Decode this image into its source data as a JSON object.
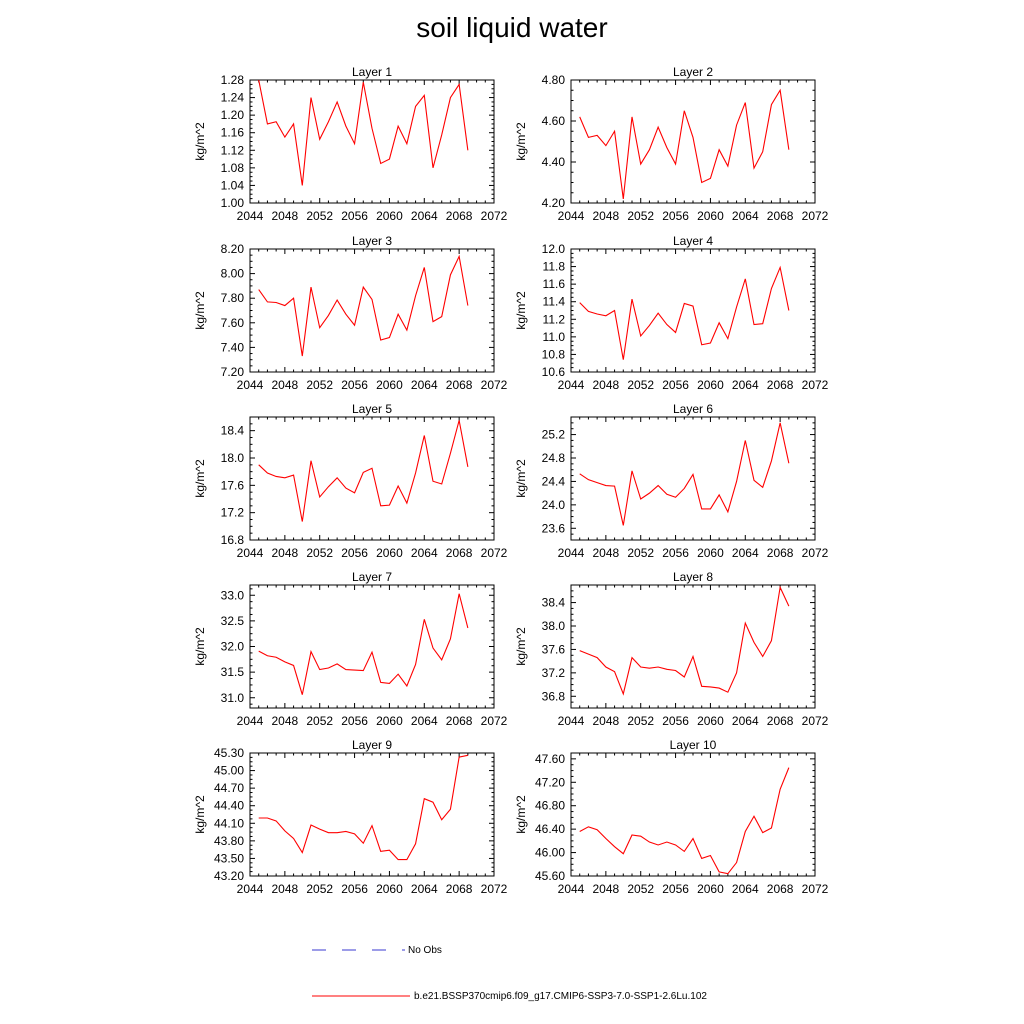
{
  "figure_title": "soil liquid water",
  "legend": {
    "obs_label": "No Obs",
    "obs_color": "#3a3ad0",
    "model_label": "b.e21.BSSP370cmip6.f09_g17.CMIP6-SSP3-7.0-SSP1-2.6Lu.102",
    "model_color": "#ff0000"
  },
  "chart_data": [
    {
      "type": "line",
      "title": "Layer 1",
      "ylabel": "kg/m^2",
      "xlim": [
        2044,
        2072
      ],
      "xticks": [
        2044,
        2048,
        2052,
        2056,
        2060,
        2064,
        2068,
        2072
      ],
      "ylim": [
        1.0,
        1.28
      ],
      "yticks": [
        1.0,
        1.04,
        1.08,
        1.12,
        1.16,
        1.2,
        1.24,
        1.28
      ],
      "ytick_labels": [
        "1.00",
        "1.04",
        "1.08",
        "1.12",
        "1.16",
        "1.20",
        "1.24",
        "1.28"
      ],
      "x": [
        2045,
        2046,
        2047,
        2048,
        2049,
        2050,
        2051,
        2052,
        2053,
        2054,
        2055,
        2056,
        2057,
        2058,
        2059,
        2060,
        2061,
        2062,
        2063,
        2064,
        2065,
        2066,
        2067,
        2068,
        2069
      ],
      "series": [
        {
          "name": "b.e21.BSSP370cmip6.f09_g17.CMIP6-SSP3-7.0-SSP1-2.6Lu.102",
          "values": [
            1.28,
            1.18,
            1.185,
            1.15,
            1.18,
            1.04,
            1.24,
            1.145,
            1.185,
            1.23,
            1.175,
            1.135,
            1.275,
            1.17,
            1.09,
            1.1,
            1.175,
            1.135,
            1.22,
            1.245,
            1.08,
            1.155,
            1.24,
            1.27,
            1.12
          ]
        }
      ]
    },
    {
      "type": "line",
      "title": "Layer 2",
      "ylabel": "kg/m^2",
      "xlim": [
        2044,
        2072
      ],
      "xticks": [
        2044,
        2048,
        2052,
        2056,
        2060,
        2064,
        2068,
        2072
      ],
      "ylim": [
        4.2,
        4.8
      ],
      "yticks": [
        4.2,
        4.4,
        4.6,
        4.8
      ],
      "ytick_labels": [
        "4.20",
        "4.40",
        "4.60",
        "4.80"
      ],
      "x": [
        2045,
        2046,
        2047,
        2048,
        2049,
        2050,
        2051,
        2052,
        2053,
        2054,
        2055,
        2056,
        2057,
        2058,
        2059,
        2060,
        2061,
        2062,
        2063,
        2064,
        2065,
        2066,
        2067,
        2068,
        2069
      ],
      "series": [
        {
          "name": "b.e21.BSSP370cmip6.f09_g17.CMIP6-SSP3-7.0-SSP1-2.6Lu.102",
          "values": [
            4.62,
            4.52,
            4.53,
            4.48,
            4.55,
            4.22,
            4.62,
            4.39,
            4.46,
            4.57,
            4.47,
            4.39,
            4.65,
            4.52,
            4.3,
            4.32,
            4.46,
            4.38,
            4.58,
            4.69,
            4.37,
            4.45,
            4.68,
            4.75,
            4.46
          ]
        }
      ]
    },
    {
      "type": "line",
      "title": "Layer 3",
      "ylabel": "kg/m^2",
      "xlim": [
        2044,
        2072
      ],
      "xticks": [
        2044,
        2048,
        2052,
        2056,
        2060,
        2064,
        2068,
        2072
      ],
      "ylim": [
        7.2,
        8.2
      ],
      "yticks": [
        7.2,
        7.4,
        7.6,
        7.8,
        8.0,
        8.2
      ],
      "ytick_labels": [
        "7.20",
        "7.40",
        "7.60",
        "7.80",
        "8.00",
        "8.20"
      ],
      "x": [
        2045,
        2046,
        2047,
        2048,
        2049,
        2050,
        2051,
        2052,
        2053,
        2054,
        2055,
        2056,
        2057,
        2058,
        2059,
        2060,
        2061,
        2062,
        2063,
        2064,
        2065,
        2066,
        2067,
        2068,
        2069
      ],
      "series": [
        {
          "name": "b.e21.BSSP370cmip6.f09_g17.CMIP6-SSP3-7.0-SSP1-2.6Lu.102",
          "values": [
            7.87,
            7.77,
            7.765,
            7.74,
            7.8,
            7.33,
            7.89,
            7.56,
            7.66,
            7.785,
            7.67,
            7.58,
            7.89,
            7.79,
            7.46,
            7.48,
            7.67,
            7.54,
            7.82,
            8.05,
            7.61,
            7.65,
            7.99,
            8.14,
            7.74
          ]
        }
      ]
    },
    {
      "type": "line",
      "title": "Layer 4",
      "ylabel": "kg/m^2",
      "xlim": [
        2044,
        2072
      ],
      "xticks": [
        2044,
        2048,
        2052,
        2056,
        2060,
        2064,
        2068,
        2072
      ],
      "ylim": [
        10.6,
        12.0
      ],
      "yticks": [
        10.6,
        10.8,
        11.0,
        11.2,
        11.4,
        11.6,
        11.8,
        12.0
      ],
      "ytick_labels": [
        "10.6",
        "10.8",
        "11.0",
        "11.2",
        "11.4",
        "11.6",
        "11.8",
        "12.0"
      ],
      "x": [
        2045,
        2046,
        2047,
        2048,
        2049,
        2050,
        2051,
        2052,
        2053,
        2054,
        2055,
        2056,
        2057,
        2058,
        2059,
        2060,
        2061,
        2062,
        2063,
        2064,
        2065,
        2066,
        2067,
        2068,
        2069
      ],
      "series": [
        {
          "name": "b.e21.BSSP370cmip6.f09_g17.CMIP6-SSP3-7.0-SSP1-2.6Lu.102",
          "values": [
            11.39,
            11.29,
            11.26,
            11.24,
            11.3,
            10.74,
            11.43,
            11.01,
            11.13,
            11.27,
            11.14,
            11.05,
            11.38,
            11.35,
            10.91,
            10.93,
            11.16,
            10.98,
            11.34,
            11.66,
            11.14,
            11.15,
            11.55,
            11.79,
            11.3
          ]
        }
      ]
    },
    {
      "type": "line",
      "title": "Layer 5",
      "ylabel": "kg/m^2",
      "xlim": [
        2044,
        2072
      ],
      "xticks": [
        2044,
        2048,
        2052,
        2056,
        2060,
        2064,
        2068,
        2072
      ],
      "ylim": [
        16.8,
        18.6
      ],
      "yticks": [
        16.8,
        17.2,
        17.6,
        18.0,
        18.4
      ],
      "ytick_labels": [
        "16.8",
        "17.2",
        "17.6",
        "18.0",
        "18.4"
      ],
      "x": [
        2045,
        2046,
        2047,
        2048,
        2049,
        2050,
        2051,
        2052,
        2053,
        2054,
        2055,
        2056,
        2057,
        2058,
        2059,
        2060,
        2061,
        2062,
        2063,
        2064,
        2065,
        2066,
        2067,
        2068,
        2069
      ],
      "series": [
        {
          "name": "b.e21.BSSP370cmip6.f09_g17.CMIP6-SSP3-7.0-SSP1-2.6Lu.102",
          "values": [
            17.9,
            17.78,
            17.73,
            17.71,
            17.75,
            17.07,
            17.96,
            17.43,
            17.58,
            17.71,
            17.56,
            17.49,
            17.79,
            17.85,
            17.3,
            17.31,
            17.59,
            17.34,
            17.78,
            18.33,
            17.66,
            17.62,
            18.07,
            18.55,
            17.87
          ]
        }
      ]
    },
    {
      "type": "line",
      "title": "Layer 6",
      "ylabel": "kg/m^2",
      "xlim": [
        2044,
        2072
      ],
      "xticks": [
        2044,
        2048,
        2052,
        2056,
        2060,
        2064,
        2068,
        2072
      ],
      "ylim": [
        23.4,
        25.5
      ],
      "yticks": [
        23.6,
        24.0,
        24.4,
        24.8,
        25.2
      ],
      "ytick_labels": [
        "23.6",
        "24.0",
        "24.4",
        "24.8",
        "25.2"
      ],
      "x": [
        2045,
        2046,
        2047,
        2048,
        2049,
        2050,
        2051,
        2052,
        2053,
        2054,
        2055,
        2056,
        2057,
        2058,
        2059,
        2060,
        2061,
        2062,
        2063,
        2064,
        2065,
        2066,
        2067,
        2068,
        2069
      ],
      "series": [
        {
          "name": "b.e21.BSSP370cmip6.f09_g17.CMIP6-SSP3-7.0-SSP1-2.6Lu.102",
          "values": [
            24.53,
            24.43,
            24.38,
            24.33,
            24.32,
            23.65,
            24.58,
            24.1,
            24.2,
            24.33,
            24.18,
            24.13,
            24.28,
            24.52,
            23.93,
            23.93,
            24.17,
            23.88,
            24.4,
            25.1,
            24.42,
            24.3,
            24.75,
            25.4,
            24.71
          ]
        }
      ]
    },
    {
      "type": "line",
      "title": "Layer 7",
      "ylabel": "kg/m^2",
      "xlim": [
        2044,
        2072
      ],
      "xticks": [
        2044,
        2048,
        2052,
        2056,
        2060,
        2064,
        2068,
        2072
      ],
      "ylim": [
        30.8,
        33.2
      ],
      "yticks": [
        31.0,
        31.5,
        32.0,
        32.5,
        33.0
      ],
      "ytick_labels": [
        "31.0",
        "31.5",
        "32.0",
        "32.5",
        "33.0"
      ],
      "x": [
        2045,
        2046,
        2047,
        2048,
        2049,
        2050,
        2051,
        2052,
        2053,
        2054,
        2055,
        2056,
        2057,
        2058,
        2059,
        2060,
        2061,
        2062,
        2063,
        2064,
        2065,
        2066,
        2067,
        2068,
        2069
      ],
      "series": [
        {
          "name": "b.e21.BSSP370cmip6.f09_g17.CMIP6-SSP3-7.0-SSP1-2.6Lu.102",
          "values": [
            31.91,
            31.82,
            31.79,
            31.7,
            31.63,
            31.06,
            31.9,
            31.55,
            31.58,
            31.66,
            31.55,
            31.54,
            31.53,
            31.89,
            31.3,
            31.28,
            31.46,
            31.23,
            31.65,
            32.53,
            31.97,
            31.74,
            32.15,
            33.03,
            32.36
          ]
        }
      ]
    },
    {
      "type": "line",
      "title": "Layer 8",
      "ylabel": "kg/m^2",
      "xlim": [
        2044,
        2072
      ],
      "xticks": [
        2044,
        2048,
        2052,
        2056,
        2060,
        2064,
        2068,
        2072
      ],
      "ylim": [
        36.6,
        38.7
      ],
      "yticks": [
        36.8,
        37.2,
        37.6,
        38.0,
        38.4
      ],
      "ytick_labels": [
        "36.8",
        "37.2",
        "37.6",
        "38.0",
        "38.4"
      ],
      "x": [
        2045,
        2046,
        2047,
        2048,
        2049,
        2050,
        2051,
        2052,
        2053,
        2054,
        2055,
        2056,
        2057,
        2058,
        2059,
        2060,
        2061,
        2062,
        2063,
        2064,
        2065,
        2066,
        2067,
        2068,
        2069
      ],
      "series": [
        {
          "name": "b.e21.BSSP370cmip6.f09_g17.CMIP6-SSP3-7.0-SSP1-2.6Lu.102",
          "values": [
            37.58,
            37.52,
            37.46,
            37.3,
            37.22,
            36.84,
            37.46,
            37.3,
            37.28,
            37.3,
            37.26,
            37.24,
            37.13,
            37.48,
            36.97,
            36.96,
            36.94,
            36.87,
            37.2,
            38.05,
            37.72,
            37.48,
            37.75,
            38.66,
            38.34
          ]
        }
      ]
    },
    {
      "type": "line",
      "title": "Layer 9",
      "ylabel": "kg/m^2",
      "xlim": [
        2044,
        2072
      ],
      "xticks": [
        2044,
        2048,
        2052,
        2056,
        2060,
        2064,
        2068,
        2072
      ],
      "ylim": [
        43.2,
        45.3
      ],
      "yticks": [
        43.2,
        43.5,
        43.8,
        44.1,
        44.4,
        44.7,
        45.0,
        45.3
      ],
      "ytick_labels": [
        "43.20",
        "43.50",
        "43.80",
        "44.10",
        "44.40",
        "44.70",
        "45.00",
        "45.30"
      ],
      "x": [
        2045,
        2046,
        2047,
        2048,
        2049,
        2050,
        2051,
        2052,
        2053,
        2054,
        2055,
        2056,
        2057,
        2058,
        2059,
        2060,
        2061,
        2062,
        2063,
        2064,
        2065,
        2066,
        2067,
        2068,
        2069
      ],
      "series": [
        {
          "name": "b.e21.BSSP370cmip6.f09_g17.CMIP6-SSP3-7.0-SSP1-2.6Lu.102",
          "values": [
            44.19,
            44.19,
            44.14,
            43.97,
            43.84,
            43.6,
            44.07,
            44.0,
            43.94,
            43.94,
            43.96,
            43.92,
            43.76,
            44.06,
            43.62,
            43.64,
            43.48,
            43.48,
            43.75,
            44.52,
            44.46,
            44.16,
            44.34,
            45.23,
            45.26
          ]
        }
      ]
    },
    {
      "type": "line",
      "title": "Layer 10",
      "ylabel": "kg/m^2",
      "xlim": [
        2044,
        2072
      ],
      "xticks": [
        2044,
        2048,
        2052,
        2056,
        2060,
        2064,
        2068,
        2072
      ],
      "ylim": [
        45.6,
        47.7
      ],
      "yticks": [
        45.6,
        46.0,
        46.4,
        46.8,
        47.2,
        47.6
      ],
      "ytick_labels": [
        "45.60",
        "46.00",
        "46.40",
        "46.80",
        "47.20",
        "47.60"
      ],
      "x": [
        2045,
        2046,
        2047,
        2048,
        2049,
        2050,
        2051,
        2052,
        2053,
        2054,
        2055,
        2056,
        2057,
        2058,
        2059,
        2060,
        2061,
        2062,
        2063,
        2064,
        2065,
        2066,
        2067,
        2068,
        2069
      ],
      "series": [
        {
          "name": "b.e21.BSSP370cmip6.f09_g17.CMIP6-SSP3-7.0-SSP1-2.6Lu.102",
          "values": [
            46.36,
            46.44,
            46.39,
            46.24,
            46.1,
            45.98,
            46.3,
            46.28,
            46.18,
            46.13,
            46.18,
            46.13,
            46.02,
            46.24,
            45.9,
            45.95,
            45.67,
            45.64,
            45.83,
            46.36,
            46.62,
            46.34,
            46.42,
            47.08,
            47.45
          ]
        }
      ]
    }
  ]
}
